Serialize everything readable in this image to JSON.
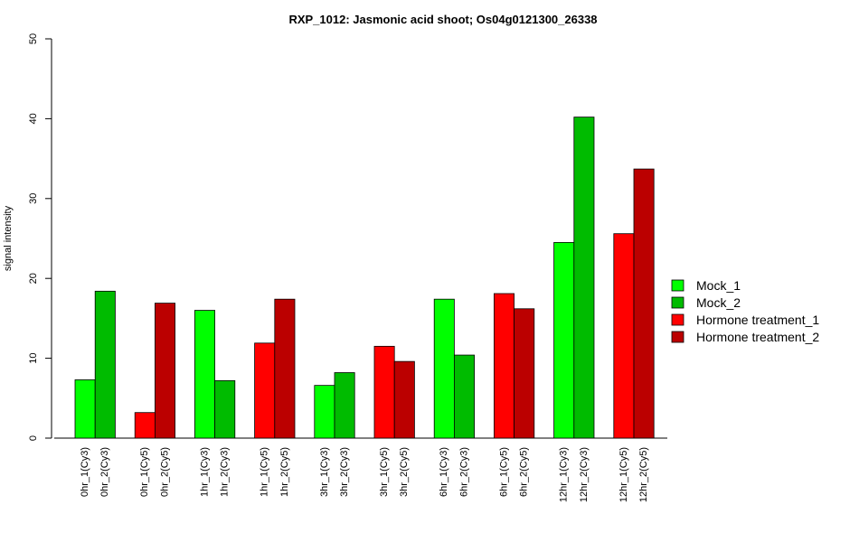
{
  "chart_data": {
    "type": "bar",
    "title": "RXP_1012: Jasmonic acid shoot; Os04g0121300_26338",
    "ylabel": "signal intensity",
    "xlabel": "",
    "ylim": [
      0,
      50
    ],
    "yticks": [
      0,
      10,
      20,
      30,
      40,
      50
    ],
    "grid": false,
    "legend_position": "right",
    "series": [
      {
        "name": "Mock_1",
        "color": "#00ff00"
      },
      {
        "name": "Mock_2",
        "color": "#00bb00"
      },
      {
        "name": "Hormone treatment_1",
        "color": "#ff0000"
      },
      {
        "name": "Hormone treatment_2",
        "color": "#bb0000"
      }
    ],
    "bars": [
      {
        "label": "0hr_1(Cy3)",
        "value": 7.3,
        "series": 0
      },
      {
        "label": "0hr_2(Cy3)",
        "value": 18.4,
        "series": 1
      },
      {
        "label": "0hr_1(Cy5)",
        "value": 3.2,
        "series": 2
      },
      {
        "label": "0hr_2(Cy5)",
        "value": 16.9,
        "series": 3
      },
      {
        "label": "1hr_1(Cy3)",
        "value": 16.0,
        "series": 0
      },
      {
        "label": "1hr_2(Cy3)",
        "value": 7.2,
        "series": 1
      },
      {
        "label": "1hr_1(Cy5)",
        "value": 11.9,
        "series": 2
      },
      {
        "label": "1hr_2(Cy5)",
        "value": 17.4,
        "series": 3
      },
      {
        "label": "3hr_1(Cy3)",
        "value": 6.6,
        "series": 0
      },
      {
        "label": "3hr_2(Cy3)",
        "value": 8.2,
        "series": 1
      },
      {
        "label": "3hr_1(Cy5)",
        "value": 11.5,
        "series": 2
      },
      {
        "label": "3hr_2(Cy5)",
        "value": 9.6,
        "series": 3
      },
      {
        "label": "6hr_1(Cy3)",
        "value": 17.4,
        "series": 0
      },
      {
        "label": "6hr_2(Cy3)",
        "value": 10.4,
        "series": 1
      },
      {
        "label": "6hr_1(Cy5)",
        "value": 18.1,
        "series": 2
      },
      {
        "label": "6hr_2(Cy5)",
        "value": 16.2,
        "series": 3
      },
      {
        "label": "12hr_1(Cy3)",
        "value": 24.5,
        "series": 0
      },
      {
        "label": "12hr_2(Cy3)",
        "value": 40.2,
        "series": 1
      },
      {
        "label": "12hr_1(Cy5)",
        "value": 25.6,
        "series": 2
      },
      {
        "label": "12hr_2(Cy5)",
        "value": 33.7,
        "series": 3
      }
    ]
  }
}
